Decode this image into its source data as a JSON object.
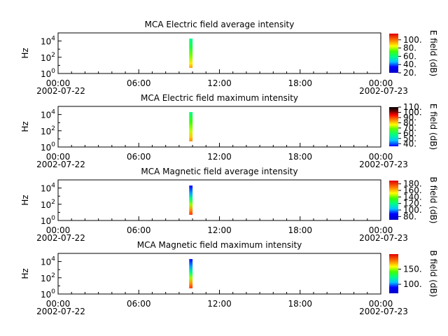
{
  "figure": {
    "width": 640,
    "height": 480
  },
  "chart_data": [
    {
      "type": "heatmap",
      "title": "MCA  Electric field average intensity",
      "ylabel": "Hz",
      "ylim": [
        1,
        100000
      ],
      "yscale": "log",
      "yticks": [
        {
          "exp": "0"
        },
        {
          "exp": "2"
        },
        {
          "exp": "4"
        }
      ],
      "xticks": [
        "00:00\n2002-07-22",
        "06:00",
        "12:00",
        "18:00",
        "00:00\n2002-07-23"
      ],
      "xlim_hours": [
        0,
        24
      ],
      "data_time_hours": [
        9.75,
        10.0
      ],
      "data_freq_hz": [
        5,
        20000
      ],
      "colorbar": {
        "label": "E field (dB)",
        "range": [
          20,
          115
        ],
        "ticks": [
          "20.",
          "40.",
          "60.",
          "80.",
          "100."
        ],
        "colormap": "rainbow-blue-red"
      }
    },
    {
      "type": "heatmap",
      "title": "MCA  Electric field maximum intensity",
      "ylabel": "Hz",
      "ylim": [
        1,
        100000
      ],
      "yscale": "log",
      "yticks": [
        {
          "exp": "0"
        },
        {
          "exp": "2"
        },
        {
          "exp": "4"
        }
      ],
      "xticks": [
        "00:00\n2002-07-22",
        "06:00",
        "12:00",
        "18:00",
        "00:00\n2002-07-23"
      ],
      "xlim_hours": [
        0,
        24
      ],
      "data_time_hours": [
        9.75,
        10.0
      ],
      "data_freq_hz": [
        5,
        20000
      ],
      "colorbar": {
        "label": "E field (dB)",
        "range": [
          35,
          110
        ],
        "ticks": [
          "40.",
          "50.",
          "60.",
          "70.",
          "80.",
          "90.",
          "100.",
          "110."
        ],
        "colormap": "rainbow-black-top"
      }
    },
    {
      "type": "heatmap",
      "title": "MCA  Magnetic field average intensity",
      "ylabel": "Hz",
      "ylim": [
        1,
        100000
      ],
      "yscale": "log",
      "yticks": [
        {
          "exp": "0"
        },
        {
          "exp": "2"
        },
        {
          "exp": "4"
        }
      ],
      "xticks": [
        "00:00\n2002-07-22",
        "06:00",
        "12:00",
        "18:00",
        "00:00\n2002-07-23"
      ],
      "xlim_hours": [
        0,
        24
      ],
      "data_time_hours": [
        9.75,
        10.0
      ],
      "data_freq_hz": [
        5,
        20000
      ],
      "colorbar": {
        "label": "B field (dB)",
        "range": [
          70,
          190
        ],
        "ticks": [
          "80.",
          "100.",
          "120.",
          "140.",
          "160.",
          "180."
        ],
        "colormap": "rainbow-blue-red"
      }
    },
    {
      "type": "heatmap",
      "title": "MCA  Magnetic field maximum intensity",
      "ylabel": "Hz",
      "ylim": [
        1,
        100000
      ],
      "yscale": "log",
      "yticks": [
        {
          "exp": "0"
        },
        {
          "exp": "2"
        },
        {
          "exp": "4"
        }
      ],
      "xticks": [
        "00:00\n2002-07-22",
        "06:00",
        "12:00",
        "18:00",
        "00:00\n2002-07-23"
      ],
      "xlim_hours": [
        0,
        24
      ],
      "data_time_hours": [
        9.75,
        10.0
      ],
      "data_freq_hz": [
        5,
        20000
      ],
      "colorbar": {
        "label": "B field (dB)",
        "range": [
          70,
          200
        ],
        "ticks": [
          "100.",
          "150."
        ],
        "colormap": "rainbow-blue-red"
      }
    }
  ]
}
